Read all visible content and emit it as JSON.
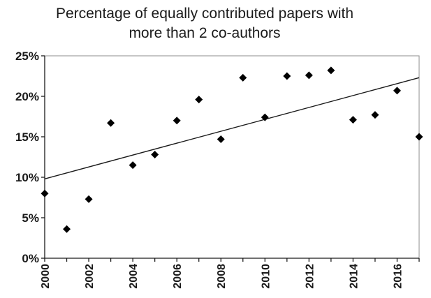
{
  "chart_data": {
    "type": "scatter",
    "title_lines": [
      "Percentage of equally contributed papers with",
      "more than 2 co-authors"
    ],
    "xlabel": "",
    "ylabel": "",
    "x_range": [
      2000,
      2017
    ],
    "y_range": [
      0,
      25
    ],
    "y_ticks": [
      {
        "value": 0,
        "label": "0%"
      },
      {
        "value": 5,
        "label": "5%"
      },
      {
        "value": 10,
        "label": "10%"
      },
      {
        "value": 15,
        "label": "15%"
      },
      {
        "value": 20,
        "label": "20%"
      },
      {
        "value": 25,
        "label": "25%"
      }
    ],
    "x_ticks": [
      {
        "value": 2000,
        "label": "2000"
      },
      {
        "value": 2002,
        "label": "2002"
      },
      {
        "value": 2004,
        "label": "2004"
      },
      {
        "value": 2006,
        "label": "2006"
      },
      {
        "value": 2008,
        "label": "2008"
      },
      {
        "value": 2010,
        "label": "2010"
      },
      {
        "value": 2012,
        "label": "2012"
      },
      {
        "value": 2014,
        "label": "2014"
      },
      {
        "value": 2016,
        "label": "2016"
      }
    ],
    "points": [
      {
        "x": 2000,
        "y": 8.0
      },
      {
        "x": 2001,
        "y": 3.6
      },
      {
        "x": 2002,
        "y": 7.3
      },
      {
        "x": 2003,
        "y": 16.7
      },
      {
        "x": 2004,
        "y": 11.5
      },
      {
        "x": 2005,
        "y": 12.8
      },
      {
        "x": 2006,
        "y": 17.0
      },
      {
        "x": 2007,
        "y": 19.6
      },
      {
        "x": 2008,
        "y": 14.7
      },
      {
        "x": 2009,
        "y": 22.3
      },
      {
        "x": 2010,
        "y": 17.4
      },
      {
        "x": 2011,
        "y": 22.5
      },
      {
        "x": 2012,
        "y": 22.6
      },
      {
        "x": 2013,
        "y": 23.2
      },
      {
        "x": 2014,
        "y": 17.1
      },
      {
        "x": 2015,
        "y": 17.7
      },
      {
        "x": 2016,
        "y": 20.7
      },
      {
        "x": 2017,
        "y": 15.0
      }
    ],
    "trendline": {
      "type": "linear",
      "start": {
        "x": 2000,
        "y": 9.8
      },
      "end": {
        "x": 2017,
        "y": 22.3
      }
    },
    "marker": "diamond",
    "grid": false,
    "legend": "none",
    "colors": {
      "marker": "#000000",
      "trendline": "#1a1a1a",
      "axis": "#1a1a1a",
      "frame": "#8c8c8c",
      "text": "#1a1a1a"
    }
  }
}
